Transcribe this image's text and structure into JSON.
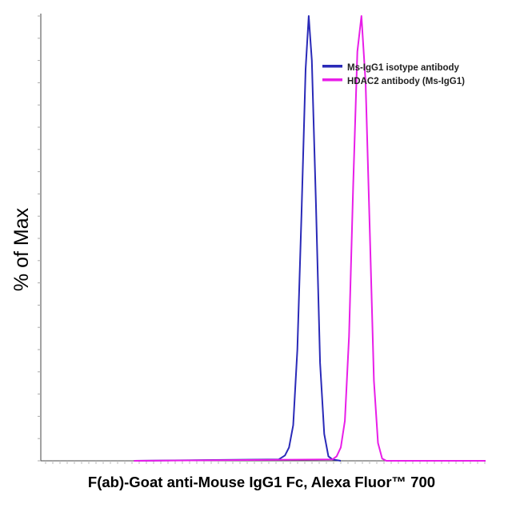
{
  "chart_data": {
    "type": "line",
    "title": "",
    "xlabel": "F(ab)-Goat anti-Mouse IgG1 Fc, Alexa Fluor™ 700",
    "ylabel": "% of Max",
    "x_scale": "log",
    "ylim": [
      0,
      100
    ],
    "grid": false,
    "legend_position": "top-right",
    "series": [
      {
        "name": "Ms-IgG1 isotype antibody",
        "color": "#2a2ab8",
        "points": [
          [
            0,
            0
          ],
          [
            0.7,
            0.3
          ],
          [
            0.73,
            1.2
          ],
          [
            0.75,
            3
          ],
          [
            0.77,
            8
          ],
          [
            0.79,
            25
          ],
          [
            0.81,
            55
          ],
          [
            0.83,
            88
          ],
          [
            0.845,
            100
          ],
          [
            0.86,
            90
          ],
          [
            0.88,
            58
          ],
          [
            0.9,
            22
          ],
          [
            0.92,
            6
          ],
          [
            0.94,
            1
          ],
          [
            0.96,
            0.3
          ],
          [
            1.0,
            0
          ]
        ]
      },
      {
        "name": "HDAC2 antibody (Ms-IgG1)",
        "color": "#e81ee8",
        "points": [
          [
            0,
            0
          ],
          [
            0.96,
            0.3
          ],
          [
            0.98,
            1
          ],
          [
            1.0,
            3
          ],
          [
            1.02,
            9
          ],
          [
            1.04,
            28
          ],
          [
            1.06,
            62
          ],
          [
            1.08,
            92
          ],
          [
            1.1,
            100
          ],
          [
            1.12,
            85
          ],
          [
            1.14,
            52
          ],
          [
            1.16,
            18
          ],
          [
            1.18,
            4
          ],
          [
            1.2,
            0.5
          ],
          [
            1.22,
            0
          ],
          [
            1.7,
            0
          ]
        ]
      }
    ]
  }
}
